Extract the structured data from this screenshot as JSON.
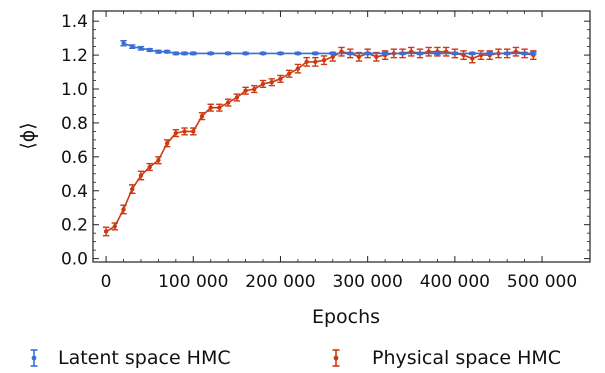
{
  "chart_data": {
    "type": "line",
    "xlabel": "Epochs",
    "ylabel": "⟨ϕ⟩",
    "xlim": [
      -15000,
      555000
    ],
    "ylim": [
      -0.02,
      1.46
    ],
    "xticks": [
      0,
      100000,
      200000,
      300000,
      400000,
      500000
    ],
    "xtick_labels": [
      "0",
      "100 000",
      "200 000",
      "300 000",
      "400 000",
      "500 000"
    ],
    "yticks": [
      0.0,
      0.2,
      0.4,
      0.6,
      0.8,
      1.0,
      1.2,
      1.4
    ],
    "ytick_labels": [
      "0.0",
      "0.2",
      "0.4",
      "0.6",
      "0.8",
      "1.0",
      "1.2",
      "1.4"
    ],
    "legend_position": "bottom",
    "series": [
      {
        "name": "Latent space HMC",
        "color": "#3a6fd8",
        "x": [
          20000,
          30000,
          40000,
          50000,
          60000,
          70000,
          80000,
          90000,
          100000,
          120000,
          140000,
          160000,
          180000,
          200000,
          220000,
          240000,
          260000,
          280000,
          300000,
          320000,
          340000,
          360000,
          380000,
          400000,
          420000,
          440000,
          460000,
          480000,
          490000
        ],
        "y": [
          1.27,
          1.25,
          1.24,
          1.23,
          1.22,
          1.22,
          1.21,
          1.21,
          1.21,
          1.21,
          1.21,
          1.21,
          1.21,
          1.21,
          1.21,
          1.21,
          1.21,
          1.21,
          1.21,
          1.21,
          1.21,
          1.21,
          1.21,
          1.21,
          1.21,
          1.21,
          1.21,
          1.21,
          1.21
        ],
        "err": [
          0.015,
          0.01,
          0.01,
          0.008,
          0.008,
          0.007,
          0.007,
          0.007,
          0.007,
          0.006,
          0.006,
          0.006,
          0.006,
          0.006,
          0.006,
          0.006,
          0.006,
          0.006,
          0.006,
          0.006,
          0.006,
          0.006,
          0.006,
          0.006,
          0.006,
          0.006,
          0.006,
          0.006,
          0.006
        ]
      },
      {
        "name": "Physical space HMC",
        "color": "#cc3a10",
        "x": [
          0,
          10000,
          20000,
          30000,
          40000,
          50000,
          60000,
          70000,
          80000,
          90000,
          100000,
          110000,
          120000,
          130000,
          140000,
          150000,
          160000,
          170000,
          180000,
          190000,
          200000,
          210000,
          220000,
          230000,
          240000,
          250000,
          260000,
          270000,
          280000,
          290000,
          300000,
          310000,
          320000,
          330000,
          340000,
          350000,
          360000,
          370000,
          380000,
          390000,
          400000,
          410000,
          420000,
          430000,
          440000,
          450000,
          460000,
          470000,
          480000,
          490000
        ],
        "y": [
          0.16,
          0.19,
          0.29,
          0.41,
          0.49,
          0.54,
          0.58,
          0.68,
          0.74,
          0.75,
          0.75,
          0.84,
          0.89,
          0.89,
          0.92,
          0.95,
          0.99,
          1.0,
          1.03,
          1.04,
          1.06,
          1.09,
          1.12,
          1.16,
          1.16,
          1.17,
          1.19,
          1.22,
          1.21,
          1.19,
          1.21,
          1.19,
          1.2,
          1.21,
          1.21,
          1.22,
          1.21,
          1.22,
          1.22,
          1.22,
          1.21,
          1.2,
          1.18,
          1.2,
          1.2,
          1.21,
          1.21,
          1.22,
          1.21,
          1.2
        ],
        "err": [
          0.025,
          0.02,
          0.025,
          0.025,
          0.025,
          0.02,
          0.02,
          0.02,
          0.02,
          0.02,
          0.02,
          0.02,
          0.02,
          0.02,
          0.02,
          0.02,
          0.02,
          0.02,
          0.02,
          0.02,
          0.02,
          0.02,
          0.025,
          0.025,
          0.025,
          0.025,
          0.025,
          0.025,
          0.025,
          0.025,
          0.025,
          0.025,
          0.025,
          0.025,
          0.025,
          0.025,
          0.025,
          0.025,
          0.025,
          0.025,
          0.025,
          0.025,
          0.025,
          0.025,
          0.025,
          0.025,
          0.025,
          0.025,
          0.025,
          0.025
        ]
      }
    ]
  }
}
